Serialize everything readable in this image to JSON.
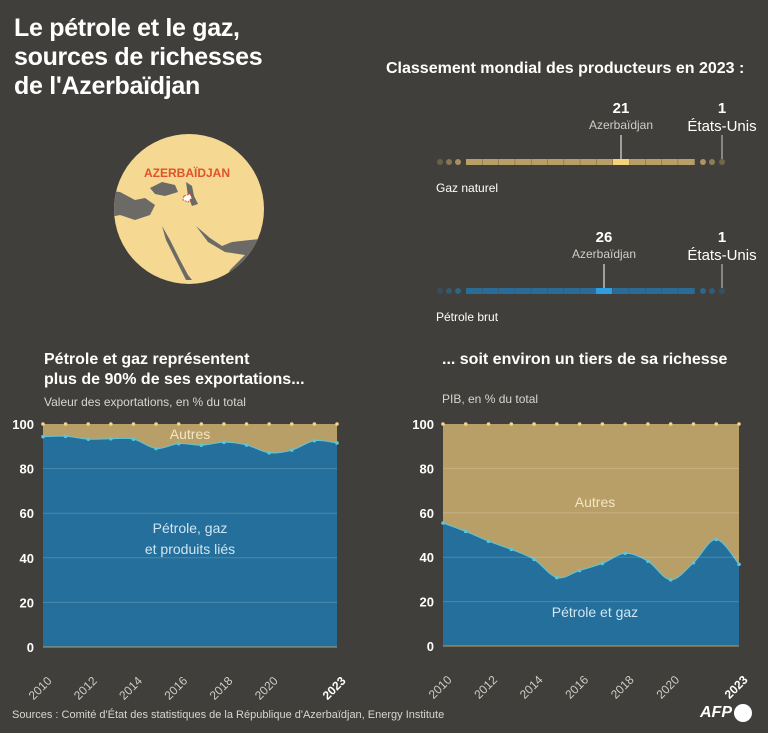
{
  "header": {
    "title_lines": [
      "Le pétrole et le gaz,",
      "sources de richesses",
      "de l'Azerbaïdjan"
    ]
  },
  "map": {
    "label": "AZERBAÏDJAN",
    "land_color": "#f5d892",
    "sea_color": "#6b6a66",
    "highlight_color": "#e0522b"
  },
  "ranking": {
    "title": "Classement mondial des producteurs en 2023 :",
    "rows": [
      {
        "name": "Gaz naturel",
        "country": "Azerbaïdjan",
        "rank": "21",
        "leader": "États-Unis",
        "leader_rank": "1",
        "color": "#b89f68",
        "highlight": "#f6d27a"
      },
      {
        "name": "Pétrole brut",
        "country": "Azerbaïdjan",
        "rank": "26",
        "leader": "États-Unis",
        "leader_rank": "1",
        "color": "#2a6c95",
        "highlight": "#2e9ee0"
      }
    ]
  },
  "chart_data": [
    {
      "type": "area",
      "title": "Pétrole et gaz représentent plus de 90% de ses exportations...",
      "ylabel": "Valeur des exportations, en % du total",
      "x": [
        2010,
        2011,
        2012,
        2013,
        2014,
        2015,
        2016,
        2017,
        2018,
        2019,
        2020,
        2021,
        2022,
        2023
      ],
      "x_tick_labels": [
        "2010",
        "2012",
        "2014",
        "2016",
        "2018",
        "2020",
        "2023"
      ],
      "y_ticks": [
        0,
        20,
        40,
        60,
        80,
        100
      ],
      "ylim": [
        0,
        100
      ],
      "grid": true,
      "series": [
        {
          "name": "Pétrole, gaz et produits liés",
          "color": "#246f9b",
          "values": [
            94.3,
            94.5,
            93.2,
            93.4,
            93.2,
            89.0,
            91.2,
            90.5,
            91.8,
            90.6,
            87.1,
            88.3,
            92.5,
            91.5
          ]
        },
        {
          "name": "Autres",
          "color": "#b89f68",
          "values": [
            100,
            100,
            100,
            100,
            100,
            100,
            100,
            100,
            100,
            100,
            100,
            100,
            100,
            100
          ]
        }
      ],
      "series_labels": [
        "Pétrole, gaz",
        "et produits liés"
      ]
    },
    {
      "type": "area",
      "title": "... soit environ un tiers de sa richesse",
      "ylabel": "PIB, en % du total",
      "x": [
        2010,
        2011,
        2012,
        2013,
        2014,
        2015,
        2016,
        2017,
        2018,
        2019,
        2020,
        2021,
        2022,
        2023
      ],
      "x_tick_labels": [
        "2010",
        "2012",
        "2014",
        "2016",
        "2018",
        "2020",
        "2023"
      ],
      "y_ticks": [
        0,
        20,
        40,
        60,
        80,
        100
      ],
      "ylim": [
        0,
        100
      ],
      "grid": true,
      "series": [
        {
          "name": "Pétrole et gaz",
          "color": "#246f9b",
          "values": [
            55.4,
            51.6,
            47.2,
            43.5,
            39.0,
            30.8,
            34.0,
            37.2,
            41.7,
            38.2,
            29.8,
            37.5,
            48.0,
            36.8
          ]
        },
        {
          "name": "Autres",
          "color": "#b89f68",
          "values": [
            100,
            100,
            100,
            100,
            100,
            100,
            100,
            100,
            100,
            100,
            100,
            100,
            100,
            100
          ]
        }
      ]
    }
  ],
  "footer": {
    "sources": "Sources : Comité d'État des statistiques de la République d'Azerbaïdjan, Energy Institute",
    "logo": "AFP"
  }
}
